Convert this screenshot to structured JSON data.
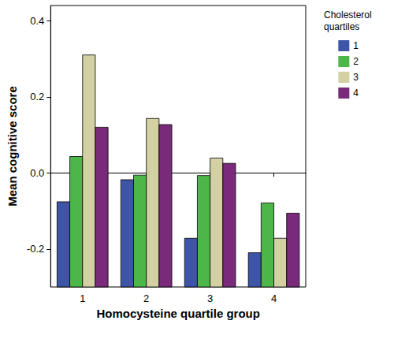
{
  "chart_data": {
    "type": "bar",
    "x_label": "Homocysteine quartile group",
    "y_label": "Mean cognitive score",
    "legend_title": "Cholesterol quartiles",
    "categories": [
      "1",
      "2",
      "3",
      "4"
    ],
    "series": [
      {
        "name": "1",
        "color": "#3d55a6",
        "values": [
          -0.076,
          -0.018,
          -0.172,
          -0.21
        ]
      },
      {
        "name": "2",
        "color": "#4cb748",
        "values": [
          0.043,
          -0.006,
          -0.007,
          -0.079
        ]
      },
      {
        "name": "3",
        "color": "#d3d0a3",
        "values": [
          0.31,
          0.143,
          0.039,
          -0.172
        ]
      },
      {
        "name": "4",
        "color": "#7a2a7a",
        "values": [
          0.12,
          0.127,
          0.025,
          -0.106
        ]
      }
    ],
    "ylim": [
      -0.3,
      0.44
    ],
    "yticks": [
      -0.2,
      {
        "value": 0,
        "label": "0.0"
      },
      0.2,
      0.4
    ],
    "grid": false,
    "legend": "right"
  }
}
